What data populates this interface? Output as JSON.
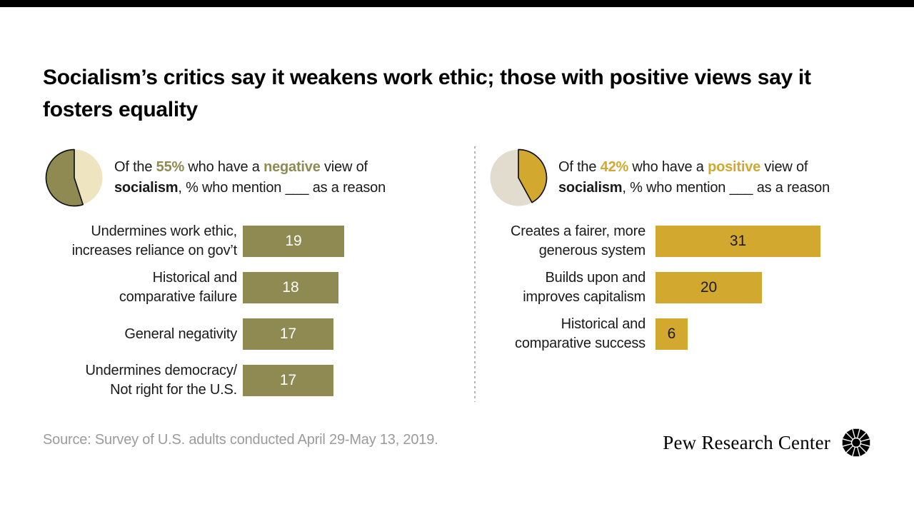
{
  "page": {
    "title": "Socialism’s critics say it weakens work ethic; those with positive views say it fosters equality",
    "source": "Source: Survey of U.S. adults conducted April 29-May 13, 2019.",
    "brand": "Pew Research Center"
  },
  "colors": {
    "top_bar": "#000000",
    "negative": "#8f8952",
    "negative_light": "#efe4c0",
    "positive": "#d3a82e",
    "positive_light": "#e1dccd",
    "text": "#1a1a1a",
    "source_gray": "#9b9b9b",
    "divider_gray": "#b3b3b3"
  },
  "panels": [
    {
      "id": "negative",
      "bar_color": "#8f8952",
      "value_color": "#ffffff",
      "pie_pct": 55,
      "header": {
        "pre": "Of the ",
        "pct": "55%",
        "mid1": " who have a ",
        "adj": "negative",
        "mid2": " view of ",
        "subject": "socialism",
        "post": ", % who mention ___ as a reason"
      },
      "rows": [
        {
          "label_lines": [
            "Undermines work ethic,",
            "increases reliance on gov’t"
          ],
          "value": 19
        },
        {
          "label_lines": [
            "Historical and",
            "comparative failure"
          ],
          "value": 18
        },
        {
          "label_lines": [
            "General negativity"
          ],
          "value": 17
        },
        {
          "label_lines": [
            "Undermines democracy/",
            "Not right for the U.S."
          ],
          "value": 17
        }
      ]
    },
    {
      "id": "positive",
      "bar_color": "#d3a82e",
      "value_color": "#1a1a1a",
      "pie_pct": 42,
      "header": {
        "pre": "Of the ",
        "pct": "42%",
        "mid1": " who have a ",
        "adj": "positive",
        "mid2": " view of ",
        "subject": "socialism",
        "post": ", % who mention ___ as a reason"
      },
      "rows": [
        {
          "label_lines": [
            "Creates a fairer, more",
            "generous system"
          ],
          "value": 31
        },
        {
          "label_lines": [
            "Builds upon and",
            "improves capitalism"
          ],
          "value": 20
        },
        {
          "label_lines": [
            "Historical and",
            "comparative success"
          ],
          "value": 6
        }
      ]
    }
  ],
  "chart_data": [
    {
      "type": "bar",
      "orientation": "horizontal",
      "title": "Of the 55% who have a negative view of socialism, % who mention ___ as a reason",
      "categories": [
        "Undermines work ethic, increases reliance on gov’t",
        "Historical and comparative failure",
        "General negativity",
        "Undermines democracy/ Not right for the U.S."
      ],
      "values": [
        19,
        18,
        17,
        17
      ],
      "group_share_pct": 55,
      "bar_color": "#8f8952",
      "value_labels": "inside, white",
      "xlim": [
        0,
        33
      ],
      "grid": false,
      "legend": false
    },
    {
      "type": "bar",
      "orientation": "horizontal",
      "title": "Of the 42% who have a positive view of socialism, % who mention ___ as a reason",
      "categories": [
        "Creates a fairer, more generous system",
        "Builds upon and improves capitalism",
        "Historical and comparative success"
      ],
      "values": [
        31,
        20,
        6
      ],
      "group_share_pct": 42,
      "bar_color": "#d3a82e",
      "value_labels": "inside, dark",
      "xlim": [
        0,
        33
      ],
      "grid": false,
      "legend": false
    }
  ]
}
